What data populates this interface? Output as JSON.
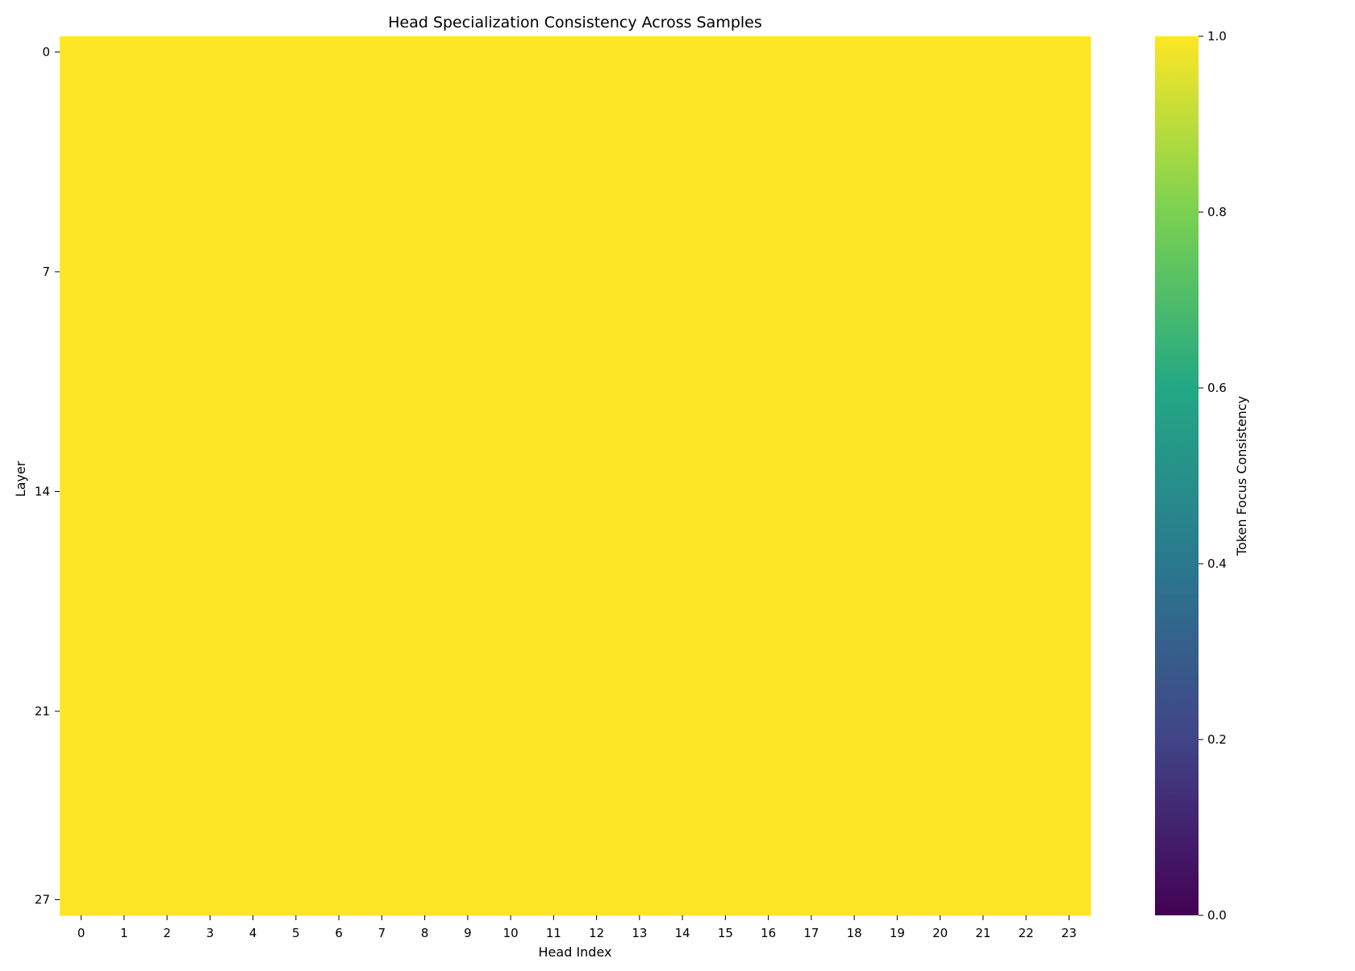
{
  "chart_data": {
    "type": "heatmap",
    "title": "Head Specialization Consistency Across Samples",
    "xlabel": "Head Index",
    "ylabel": "Layer",
    "x_categories": [
      "0",
      "1",
      "2",
      "3",
      "4",
      "5",
      "6",
      "7",
      "8",
      "9",
      "10",
      "11",
      "12",
      "13",
      "14",
      "15",
      "16",
      "17",
      "18",
      "19",
      "20",
      "21",
      "22",
      "23"
    ],
    "y_tick_labels": [
      "0",
      "7",
      "14",
      "21",
      "27"
    ],
    "y_tick_layers": [
      0,
      7,
      14,
      21,
      27
    ],
    "n_layers": 28,
    "n_heads": 24,
    "fill_value": 1.0,
    "colorbar": {
      "label": "Token Focus Consistency",
      "range": [
        0.0,
        1.0
      ],
      "ticks": [
        "0.0",
        "0.2",
        "0.4",
        "0.6",
        "0.8",
        "1.0"
      ],
      "tick_values": [
        0.0,
        0.2,
        0.4,
        0.6,
        0.8,
        1.0
      ],
      "colormap": "viridis"
    },
    "grid": false,
    "note_values": "All cells display 1.0 (uniform yellow)"
  },
  "colors": {
    "cell": "#fde725",
    "viridis_stops": [
      "#440154",
      "#414487",
      "#2a788e",
      "#22a884",
      "#7ad151",
      "#fde725"
    ]
  }
}
